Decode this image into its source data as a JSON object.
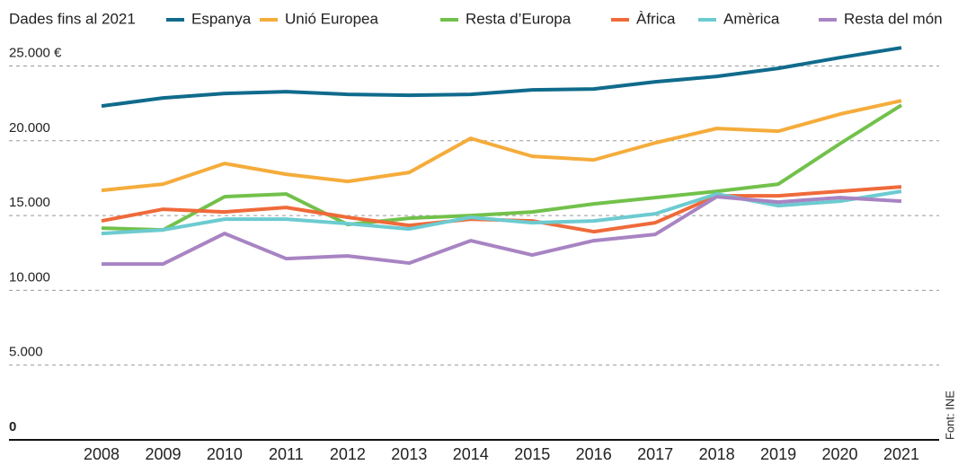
{
  "chart_data": {
    "type": "line",
    "subtitle": "Dades fins al 2021",
    "source": "Font: INE",
    "categories": [
      "2008",
      "2009",
      "2010",
      "2011",
      "2012",
      "2013",
      "2014",
      "2015",
      "2016",
      "2017",
      "2018",
      "2019",
      "2020",
      "2021"
    ],
    "ylim": [
      0,
      26500
    ],
    "yticks": [
      0,
      {
        "value": 5000,
        "label": "5.000"
      },
      {
        "value": 10000,
        "label": "10.000"
      },
      {
        "value": 15000,
        "label": "15.000"
      },
      {
        "value": 20000,
        "label": "20.000"
      },
      {
        "value": 25000,
        "label": "25.000 €"
      }
    ],
    "grid": true,
    "series": [
      {
        "name": "Espanya",
        "color": "#106b8c",
        "values": [
          22320,
          22860,
          23160,
          23280,
          23100,
          23040,
          23100,
          23400,
          23460,
          23940,
          24300,
          24840,
          25560,
          26220
        ]
      },
      {
        "name": "Unió Europea",
        "color": "#f5ac3b",
        "values": [
          16680,
          17100,
          18480,
          17760,
          17280,
          17880,
          20160,
          18960,
          18720,
          19860,
          20820,
          20640,
          21780,
          22680
        ]
      },
      {
        "name": "Resta d’Europa",
        "color": "#72c14b",
        "values": [
          14160,
          14040,
          16260,
          16440,
          14400,
          14820,
          15000,
          15240,
          15780,
          16200,
          16620,
          17100,
          19800,
          22380
        ]
      },
      {
        "name": "Àfrica",
        "color": "#ef6a3a",
        "values": [
          14640,
          15420,
          15240,
          15540,
          14880,
          14340,
          14760,
          14640,
          13920,
          14520,
          16320,
          16320,
          16620,
          16920
        ]
      },
      {
        "name": "Amèrica",
        "color": "#6ccbd0",
        "values": [
          13800,
          14040,
          14760,
          14760,
          14460,
          14100,
          14880,
          14520,
          14640,
          15120,
          16440,
          15660,
          15960,
          16620
        ]
      },
      {
        "name": "Resta del món",
        "color": "#a884c3",
        "values": [
          11760,
          11760,
          13800,
          12120,
          12300,
          11820,
          13320,
          12360,
          13320,
          13740,
          16260,
          15900,
          16200,
          15960
        ]
      }
    ]
  }
}
